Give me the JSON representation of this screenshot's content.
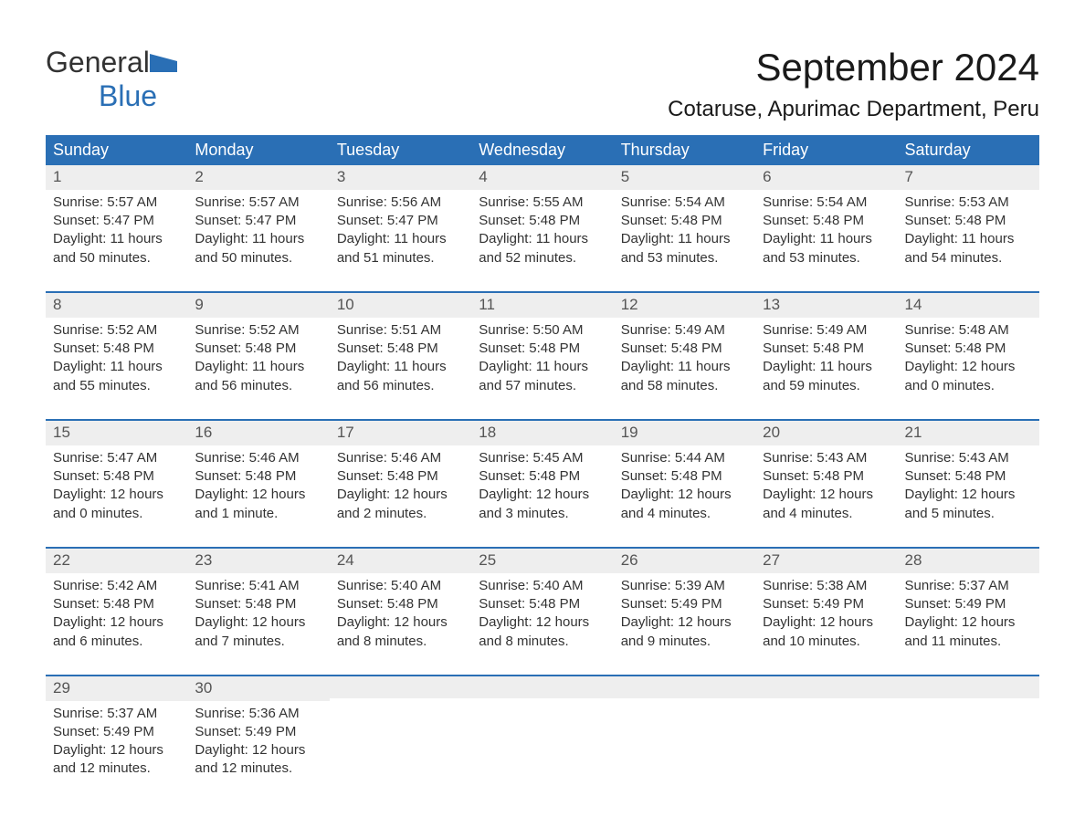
{
  "colors": {
    "header_bg": "#2a6fb5",
    "header_text": "#ffffff",
    "daynum_bg": "#eeeeee",
    "daynum_text": "#555555",
    "body_text": "#333333",
    "week_border": "#2a6fb5",
    "background": "#ffffff",
    "logo_blue": "#2a6fb5"
  },
  "typography": {
    "font_family": "Arial, Helvetica, sans-serif",
    "month_title_size": 42,
    "location_size": 24,
    "day_header_size": 18,
    "cell_size": 15
  },
  "logo": {
    "text1": "General",
    "text2": "Blue"
  },
  "title": "September 2024",
  "location": "Cotaruse, Apurimac Department, Peru",
  "day_headers": [
    "Sunday",
    "Monday",
    "Tuesday",
    "Wednesday",
    "Thursday",
    "Friday",
    "Saturday"
  ],
  "weeks": [
    [
      {
        "n": "1",
        "sunrise": "Sunrise: 5:57 AM",
        "sunset": "Sunset: 5:47 PM",
        "d1": "Daylight: 11 hours",
        "d2": "and 50 minutes."
      },
      {
        "n": "2",
        "sunrise": "Sunrise: 5:57 AM",
        "sunset": "Sunset: 5:47 PM",
        "d1": "Daylight: 11 hours",
        "d2": "and 50 minutes."
      },
      {
        "n": "3",
        "sunrise": "Sunrise: 5:56 AM",
        "sunset": "Sunset: 5:47 PM",
        "d1": "Daylight: 11 hours",
        "d2": "and 51 minutes."
      },
      {
        "n": "4",
        "sunrise": "Sunrise: 5:55 AM",
        "sunset": "Sunset: 5:48 PM",
        "d1": "Daylight: 11 hours",
        "d2": "and 52 minutes."
      },
      {
        "n": "5",
        "sunrise": "Sunrise: 5:54 AM",
        "sunset": "Sunset: 5:48 PM",
        "d1": "Daylight: 11 hours",
        "d2": "and 53 minutes."
      },
      {
        "n": "6",
        "sunrise": "Sunrise: 5:54 AM",
        "sunset": "Sunset: 5:48 PM",
        "d1": "Daylight: 11 hours",
        "d2": "and 53 minutes."
      },
      {
        "n": "7",
        "sunrise": "Sunrise: 5:53 AM",
        "sunset": "Sunset: 5:48 PM",
        "d1": "Daylight: 11 hours",
        "d2": "and 54 minutes."
      }
    ],
    [
      {
        "n": "8",
        "sunrise": "Sunrise: 5:52 AM",
        "sunset": "Sunset: 5:48 PM",
        "d1": "Daylight: 11 hours",
        "d2": "and 55 minutes."
      },
      {
        "n": "9",
        "sunrise": "Sunrise: 5:52 AM",
        "sunset": "Sunset: 5:48 PM",
        "d1": "Daylight: 11 hours",
        "d2": "and 56 minutes."
      },
      {
        "n": "10",
        "sunrise": "Sunrise: 5:51 AM",
        "sunset": "Sunset: 5:48 PM",
        "d1": "Daylight: 11 hours",
        "d2": "and 56 minutes."
      },
      {
        "n": "11",
        "sunrise": "Sunrise: 5:50 AM",
        "sunset": "Sunset: 5:48 PM",
        "d1": "Daylight: 11 hours",
        "d2": "and 57 minutes."
      },
      {
        "n": "12",
        "sunrise": "Sunrise: 5:49 AM",
        "sunset": "Sunset: 5:48 PM",
        "d1": "Daylight: 11 hours",
        "d2": "and 58 minutes."
      },
      {
        "n": "13",
        "sunrise": "Sunrise: 5:49 AM",
        "sunset": "Sunset: 5:48 PM",
        "d1": "Daylight: 11 hours",
        "d2": "and 59 minutes."
      },
      {
        "n": "14",
        "sunrise": "Sunrise: 5:48 AM",
        "sunset": "Sunset: 5:48 PM",
        "d1": "Daylight: 12 hours",
        "d2": "and 0 minutes."
      }
    ],
    [
      {
        "n": "15",
        "sunrise": "Sunrise: 5:47 AM",
        "sunset": "Sunset: 5:48 PM",
        "d1": "Daylight: 12 hours",
        "d2": "and 0 minutes."
      },
      {
        "n": "16",
        "sunrise": "Sunrise: 5:46 AM",
        "sunset": "Sunset: 5:48 PM",
        "d1": "Daylight: 12 hours",
        "d2": "and 1 minute."
      },
      {
        "n": "17",
        "sunrise": "Sunrise: 5:46 AM",
        "sunset": "Sunset: 5:48 PM",
        "d1": "Daylight: 12 hours",
        "d2": "and 2 minutes."
      },
      {
        "n": "18",
        "sunrise": "Sunrise: 5:45 AM",
        "sunset": "Sunset: 5:48 PM",
        "d1": "Daylight: 12 hours",
        "d2": "and 3 minutes."
      },
      {
        "n": "19",
        "sunrise": "Sunrise: 5:44 AM",
        "sunset": "Sunset: 5:48 PM",
        "d1": "Daylight: 12 hours",
        "d2": "and 4 minutes."
      },
      {
        "n": "20",
        "sunrise": "Sunrise: 5:43 AM",
        "sunset": "Sunset: 5:48 PM",
        "d1": "Daylight: 12 hours",
        "d2": "and 4 minutes."
      },
      {
        "n": "21",
        "sunrise": "Sunrise: 5:43 AM",
        "sunset": "Sunset: 5:48 PM",
        "d1": "Daylight: 12 hours",
        "d2": "and 5 minutes."
      }
    ],
    [
      {
        "n": "22",
        "sunrise": "Sunrise: 5:42 AM",
        "sunset": "Sunset: 5:48 PM",
        "d1": "Daylight: 12 hours",
        "d2": "and 6 minutes."
      },
      {
        "n": "23",
        "sunrise": "Sunrise: 5:41 AM",
        "sunset": "Sunset: 5:48 PM",
        "d1": "Daylight: 12 hours",
        "d2": "and 7 minutes."
      },
      {
        "n": "24",
        "sunrise": "Sunrise: 5:40 AM",
        "sunset": "Sunset: 5:48 PM",
        "d1": "Daylight: 12 hours",
        "d2": "and 8 minutes."
      },
      {
        "n": "25",
        "sunrise": "Sunrise: 5:40 AM",
        "sunset": "Sunset: 5:48 PM",
        "d1": "Daylight: 12 hours",
        "d2": "and 8 minutes."
      },
      {
        "n": "26",
        "sunrise": "Sunrise: 5:39 AM",
        "sunset": "Sunset: 5:49 PM",
        "d1": "Daylight: 12 hours",
        "d2": "and 9 minutes."
      },
      {
        "n": "27",
        "sunrise": "Sunrise: 5:38 AM",
        "sunset": "Sunset: 5:49 PM",
        "d1": "Daylight: 12 hours",
        "d2": "and 10 minutes."
      },
      {
        "n": "28",
        "sunrise": "Sunrise: 5:37 AM",
        "sunset": "Sunset: 5:49 PM",
        "d1": "Daylight: 12 hours",
        "d2": "and 11 minutes."
      }
    ],
    [
      {
        "n": "29",
        "sunrise": "Sunrise: 5:37 AM",
        "sunset": "Sunset: 5:49 PM",
        "d1": "Daylight: 12 hours",
        "d2": "and 12 minutes."
      },
      {
        "n": "30",
        "sunrise": "Sunrise: 5:36 AM",
        "sunset": "Sunset: 5:49 PM",
        "d1": "Daylight: 12 hours",
        "d2": "and 12 minutes."
      },
      {
        "n": "",
        "sunrise": "",
        "sunset": "",
        "d1": "",
        "d2": ""
      },
      {
        "n": "",
        "sunrise": "",
        "sunset": "",
        "d1": "",
        "d2": ""
      },
      {
        "n": "",
        "sunrise": "",
        "sunset": "",
        "d1": "",
        "d2": ""
      },
      {
        "n": "",
        "sunrise": "",
        "sunset": "",
        "d1": "",
        "d2": ""
      },
      {
        "n": "",
        "sunrise": "",
        "sunset": "",
        "d1": "",
        "d2": ""
      }
    ]
  ]
}
